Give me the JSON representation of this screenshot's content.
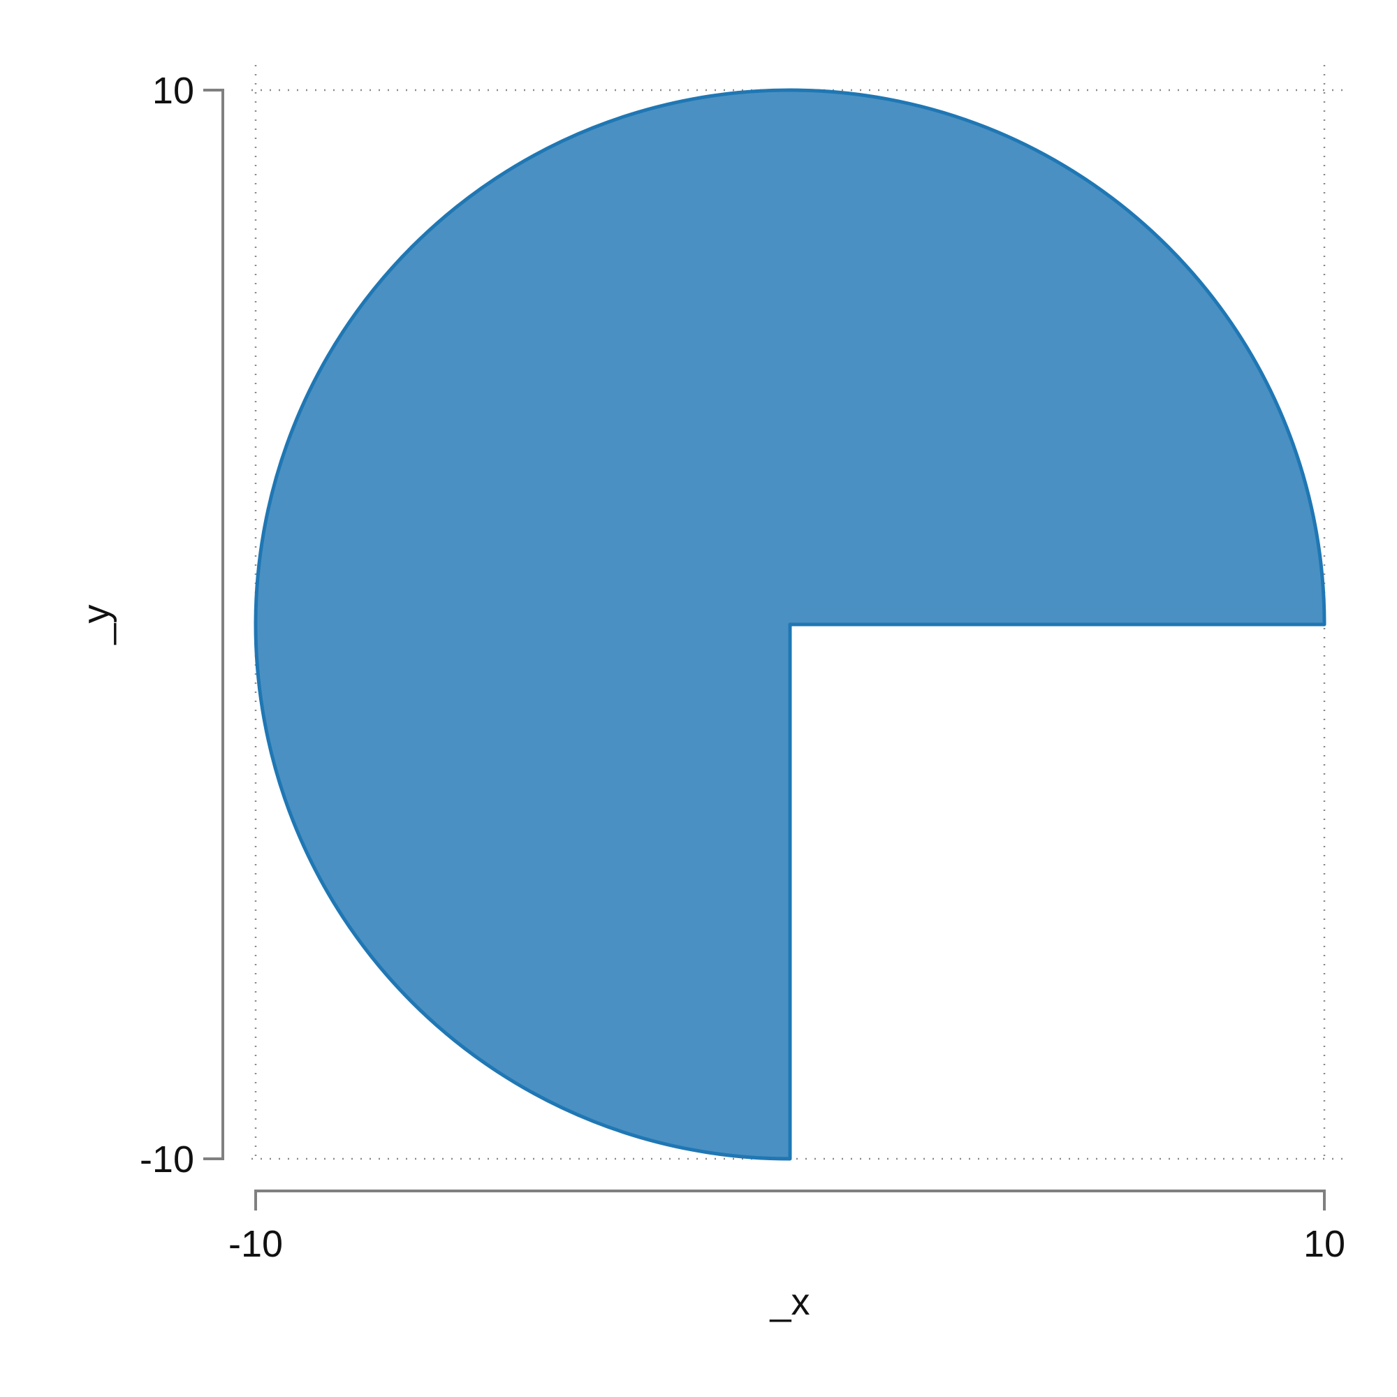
{
  "chart_data": {
    "type": "area",
    "shape": "circular sector (three quarters of a circle)",
    "center": [
      0,
      0
    ],
    "radius": 10,
    "sector_start_angle_deg": 0,
    "sector_end_angle_deg": 270,
    "xlabel": "_x",
    "ylabel": "_y",
    "xlim": [
      -10,
      10
    ],
    "ylim": [
      -10,
      10
    ],
    "x_ticks": [
      -10,
      10
    ],
    "y_ticks": [
      -10,
      10
    ],
    "x_tick_labels": [
      "-10",
      "10"
    ],
    "y_tick_labels": [
      "-10",
      "10"
    ],
    "grid": true,
    "grid_style": "dotted",
    "fill_color": "#4a90c2",
    "edge_color": "#1f77b4",
    "axis_color": "#808080"
  }
}
